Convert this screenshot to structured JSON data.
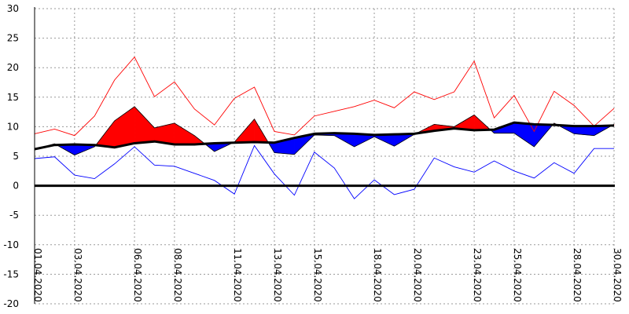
{
  "chart_data": {
    "type": "line",
    "title": "",
    "xlabel": "",
    "ylabel": "",
    "ylim": [
      -20,
      30
    ],
    "y_ticks": [
      30,
      25,
      20,
      15,
      10,
      5,
      0,
      -5,
      -10,
      -15,
      -20
    ],
    "grid": true,
    "legend": "none",
    "x": [
      "01.04.2020",
      "02.04.2020",
      "03.04.2020",
      "04.04.2020",
      "05.04.2020",
      "06.04.2020",
      "07.04.2020",
      "08.04.2020",
      "09.04.2020",
      "10.04.2020",
      "11.04.2020",
      "12.04.2020",
      "13.04.2020",
      "14.04.2020",
      "15.04.2020",
      "16.04.2020",
      "17.04.2020",
      "18.04.2020",
      "19.04.2020",
      "20.04.2020",
      "21.04.2020",
      "22.04.2020",
      "23.04.2020",
      "24.04.2020",
      "25.04.2020",
      "26.04.2020",
      "27.04.2020",
      "28.04.2020",
      "29.04.2020",
      "30.04.2020"
    ],
    "x_tick_labels": [
      "01.04.2020",
      "03.04.2020",
      "06.04.2020",
      "08.04.2020",
      "11.04.2020",
      "13.04.2020",
      "15.04.2020",
      "18.04.2020",
      "20.04.2020",
      "23.04.2020",
      "25.04.2020",
      "28.04.2020",
      "30.04.2020"
    ],
    "series": [
      {
        "values": [
          8.8,
          9.6,
          8.5,
          11.8,
          17.9,
          21.8,
          15.1,
          17.6,
          13.0,
          10.3,
          14.8,
          16.7,
          9.2,
          8.6,
          11.8,
          12.6,
          13.4,
          14.5,
          13.2,
          15.9,
          14.6,
          15.9,
          21.1,
          11.5,
          15.3,
          9.2,
          16.0,
          13.6,
          10.1,
          13.1
        ]
      },
      {
        "values": [
          4.6,
          4.9,
          1.8,
          1.2,
          3.7,
          6.6,
          3.5,
          3.3,
          2.1,
          0.9,
          -1.4,
          6.8,
          2.0,
          -1.6,
          5.7,
          3.0,
          -2.2,
          1.0,
          -1.5,
          -0.6,
          4.7,
          3.2,
          2.3,
          4.2,
          2.5,
          1.3,
          3.9,
          2.1,
          6.3,
          6.3
        ]
      },
      {
        "values": [
          6.2,
          7.1,
          5.2,
          6.6,
          11.0,
          13.4,
          9.8,
          10.6,
          8.5,
          5.8,
          7.4,
          11.3,
          5.6,
          5.3,
          8.6,
          8.5,
          6.6,
          8.3,
          6.7,
          8.7,
          10.4,
          10.0,
          12.0,
          8.9,
          8.9,
          6.6,
          10.6,
          8.8,
          8.5,
          10.4
        ]
      },
      {
        "values": [
          6.2,
          6.9,
          7.0,
          6.9,
          6.5,
          7.2,
          7.5,
          7.0,
          7.0,
          7.2,
          7.3,
          7.4,
          7.3,
          8.1,
          8.8,
          8.9,
          8.8,
          8.6,
          8.7,
          8.8,
          9.3,
          9.7,
          9.4,
          9.5,
          10.7,
          10.4,
          10.3,
          10.1,
          10.1,
          10.2
        ]
      }
    ],
    "colors": {
      "max": "#ff0000",
      "min": "#0000ff",
      "above_norm_fill": "#ff0000",
      "below_norm_fill": "#0000ff",
      "norm": "#000000",
      "zero": "#000000",
      "grid": "#9a9a9a"
    }
  }
}
